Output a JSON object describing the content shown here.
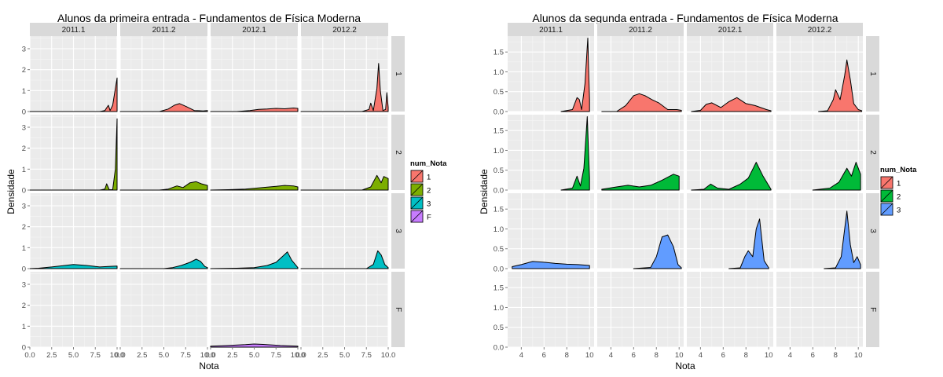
{
  "chart_data": [
    {
      "type": "area",
      "title": "Alunos da primeira entrada -  Fundamentos de Física Moderna",
      "xlabel": "Nota",
      "ylabel": "Densidade",
      "xlim": [
        0,
        10
      ],
      "ylim": [
        0,
        3.6
      ],
      "x_ticks": [
        0,
        2.5,
        5,
        7.5,
        10
      ],
      "x_tick_labels": [
        "0.0",
        "2.5",
        "5.0",
        "7.5",
        "10.0"
      ],
      "y_ticks": [
        0,
        1,
        2,
        3
      ],
      "y_tick_labels": [
        "0",
        "1",
        "2",
        "3"
      ],
      "columns": [
        "2011.1",
        "2011.2",
        "2012.1",
        "2012.2"
      ],
      "rows": [
        "1",
        "2",
        "3",
        "F"
      ],
      "grid": true,
      "legend": {
        "title": "num_Nota",
        "position": "right",
        "entries": [
          {
            "label": "1",
            "color": "#F8766D"
          },
          {
            "label": "2",
            "color": "#7CAE00"
          },
          {
            "label": "3",
            "color": "#00BFC4"
          },
          {
            "label": "F",
            "color": "#C77CFF"
          }
        ]
      },
      "panels": [
        {
          "row": "1",
          "col": "2011.1",
          "x": [
            0,
            8.0,
            8.6,
            9.0,
            9.2,
            9.5,
            9.8,
            10
          ],
          "y": [
            0,
            0,
            0.05,
            0.3,
            0.05,
            0.3,
            1.1,
            1.6
          ]
        },
        {
          "row": "1",
          "col": "2011.2",
          "x": [
            0,
            4.5,
            5.5,
            6.2,
            6.8,
            7.5,
            8.5,
            9.5,
            10
          ],
          "y": [
            0,
            0,
            0.12,
            0.3,
            0.38,
            0.25,
            0.05,
            0.03,
            0.05
          ]
        },
        {
          "row": "1",
          "col": "2012.1",
          "x": [
            0,
            3.0,
            4.5,
            5.5,
            6.5,
            7.5,
            8.5,
            9.5,
            10
          ],
          "y": [
            0,
            0,
            0.05,
            0.1,
            0.12,
            0.15,
            0.13,
            0.17,
            0.15
          ]
        },
        {
          "row": "1",
          "col": "2012.2",
          "x": [
            0,
            7.0,
            7.8,
            8.0,
            8.3,
            8.7,
            8.9,
            9.1,
            9.4,
            9.7,
            9.85,
            10
          ],
          "y": [
            0,
            0,
            0.1,
            0.4,
            0.05,
            1.1,
            2.3,
            1.0,
            0.05,
            0.1,
            0.9,
            0.2
          ]
        },
        {
          "row": "2",
          "col": "2011.1",
          "x": [
            0,
            8.0,
            8.6,
            8.8,
            9.1,
            9.5,
            9.8,
            10
          ],
          "y": [
            0,
            0,
            0.05,
            0.3,
            0.02,
            0.02,
            1.0,
            3.4
          ]
        },
        {
          "row": "2",
          "col": "2011.2",
          "x": [
            0,
            4.5,
            5.5,
            6.5,
            7.2,
            8.0,
            8.7,
            9.3,
            10
          ],
          "y": [
            0,
            0,
            0.05,
            0.2,
            0.12,
            0.35,
            0.4,
            0.3,
            0.22
          ]
        },
        {
          "row": "2",
          "col": "2012.1",
          "x": [
            0,
            2.0,
            4.0,
            6.0,
            7.5,
            8.5,
            9.5,
            10
          ],
          "y": [
            0,
            0.02,
            0.05,
            0.12,
            0.18,
            0.22,
            0.2,
            0.15
          ]
        },
        {
          "row": "2",
          "col": "2012.2",
          "x": [
            0,
            7.0,
            8.0,
            8.7,
            9.2,
            9.5,
            10
          ],
          "y": [
            0,
            0,
            0.15,
            0.7,
            0.35,
            0.65,
            0.55
          ]
        },
        {
          "row": "3",
          "col": "2011.1",
          "x": [
            0,
            1.0,
            2.5,
            4.0,
            5.0,
            6.5,
            8.0,
            9.0,
            10
          ],
          "y": [
            0,
            0.02,
            0.08,
            0.15,
            0.2,
            0.15,
            0.08,
            0.1,
            0.12
          ]
        },
        {
          "row": "3",
          "col": "2011.2",
          "x": [
            0,
            5.0,
            6.0,
            7.0,
            8.0,
            8.7,
            9.2,
            9.7,
            10
          ],
          "y": [
            0,
            0,
            0.05,
            0.15,
            0.3,
            0.45,
            0.35,
            0.1,
            0.05
          ]
        },
        {
          "row": "3",
          "col": "2012.1",
          "x": [
            0,
            3.0,
            5.0,
            6.5,
            7.5,
            8.3,
            8.8,
            9.3,
            10
          ],
          "y": [
            0,
            0.02,
            0.05,
            0.15,
            0.3,
            0.6,
            0.8,
            0.4,
            0.05
          ]
        },
        {
          "row": "3",
          "col": "2012.2",
          "x": [
            0,
            7.5,
            8.3,
            8.8,
            9.2,
            9.6,
            10
          ],
          "y": [
            0,
            0,
            0.2,
            0.85,
            0.65,
            0.2,
            0.05
          ]
        },
        {
          "row": "F",
          "col": "2012.1",
          "x": [
            0,
            2.0,
            4.0,
            5.0,
            6.0,
            8.0,
            10
          ],
          "y": [
            0.05,
            0.08,
            0.12,
            0.15,
            0.13,
            0.08,
            0.05
          ]
        }
      ]
    },
    {
      "type": "area",
      "title": "Alunos da segunda entrada -  Fundamentos de Física Moderna",
      "xlabel": "Nota",
      "ylabel": "Densidade",
      "xlim": [
        2.8,
        10.4
      ],
      "ylim": [
        0,
        1.9
      ],
      "x_ticks": [
        4,
        6,
        8,
        10
      ],
      "x_tick_labels": [
        "4",
        "6",
        "8",
        "10"
      ],
      "y_ticks": [
        0,
        0.5,
        1.0,
        1.5
      ],
      "y_tick_labels": [
        "0.0",
        "0.5",
        "1.0",
        "1.5"
      ],
      "columns": [
        "2011.1",
        "2011.2",
        "2012.1",
        "2012.2"
      ],
      "rows": [
        "1",
        "2",
        "3",
        "F"
      ],
      "grid": true,
      "legend": {
        "title": "num_Nota",
        "position": "right",
        "entries": [
          {
            "label": "1",
            "color": "#F8766D"
          },
          {
            "label": "2",
            "color": "#00BA38"
          },
          {
            "label": "3",
            "color": "#619CFF"
          }
        ]
      },
      "panels": [
        {
          "row": "1",
          "col": "2011.1",
          "x": [
            7.5,
            8.5,
            8.9,
            9.1,
            9.3,
            9.6,
            9.85,
            10.0
          ],
          "y": [
            0,
            0.05,
            0.35,
            0.3,
            0.05,
            0.7,
            1.85,
            0.3
          ]
        },
        {
          "row": "1",
          "col": "2011.2",
          "x": [
            3.2,
            4.5,
            5.3,
            6.0,
            6.5,
            7.0,
            7.6,
            8.2,
            9.0,
            9.8,
            10.2
          ],
          "y": [
            0,
            0,
            0.15,
            0.4,
            0.45,
            0.4,
            0.3,
            0.22,
            0.05,
            0.05,
            0.03
          ]
        },
        {
          "row": "1",
          "col": "2012.1",
          "x": [
            3.2,
            4.0,
            4.5,
            5.0,
            5.8,
            6.5,
            7.2,
            8.0,
            8.8,
            9.8,
            10.2
          ],
          "y": [
            0,
            0.03,
            0.18,
            0.22,
            0.1,
            0.25,
            0.35,
            0.2,
            0.15,
            0.05,
            0.02
          ]
        },
        {
          "row": "1",
          "col": "2012.2",
          "x": [
            6.5,
            7.3,
            7.8,
            8.0,
            8.4,
            8.8,
            9.0,
            9.3,
            9.6,
            10.0,
            10.3
          ],
          "y": [
            0,
            0.02,
            0.3,
            0.55,
            0.3,
            0.9,
            1.3,
            0.8,
            0.2,
            0.05,
            0.02
          ]
        },
        {
          "row": "2",
          "col": "2011.1",
          "x": [
            7.5,
            8.5,
            8.9,
            9.2,
            9.5,
            9.8,
            10.0
          ],
          "y": [
            0,
            0.05,
            0.35,
            0.1,
            0.55,
            1.85,
            0.3
          ]
        },
        {
          "row": "2",
          "col": "2011.2",
          "x": [
            3.2,
            4.5,
            5.5,
            6.5,
            7.5,
            8.5,
            9.5,
            10.0
          ],
          "y": [
            0.02,
            0.08,
            0.12,
            0.08,
            0.12,
            0.25,
            0.4,
            0.35
          ]
        },
        {
          "row": "2",
          "col": "2012.1",
          "x": [
            3.2,
            4.3,
            4.9,
            5.5,
            6.5,
            7.5,
            8.2,
            8.9,
            9.5,
            10.2
          ],
          "y": [
            0,
            0.02,
            0.15,
            0.05,
            0.02,
            0.15,
            0.3,
            0.7,
            0.35,
            0.02
          ]
        },
        {
          "row": "2",
          "col": "2012.2",
          "x": [
            6.0,
            7.5,
            8.3,
            9.0,
            9.4,
            9.8,
            10.2
          ],
          "y": [
            0,
            0.05,
            0.2,
            0.55,
            0.35,
            0.7,
            0.4
          ]
        },
        {
          "row": "3",
          "col": "2011.1",
          "x": [
            3.2,
            4.0,
            5.0,
            6.0,
            7.0,
            8.0,
            9.0,
            10.0
          ],
          "y": [
            0.05,
            0.1,
            0.18,
            0.16,
            0.13,
            0.11,
            0.1,
            0.08
          ]
        },
        {
          "row": "3",
          "col": "2011.2",
          "x": [
            6.0,
            7.5,
            8.0,
            8.5,
            9.0,
            9.5,
            9.9,
            10.2
          ],
          "y": [
            0,
            0.03,
            0.3,
            0.8,
            0.85,
            0.55,
            0.1,
            0.02
          ]
        },
        {
          "row": "3",
          "col": "2012.1",
          "x": [
            6.5,
            7.5,
            7.9,
            8.2,
            8.6,
            8.9,
            9.2,
            9.6,
            10.0
          ],
          "y": [
            0,
            0.02,
            0.3,
            0.45,
            0.3,
            1.0,
            1.25,
            0.2,
            0.02
          ]
        },
        {
          "row": "3",
          "col": "2012.2",
          "x": [
            7.0,
            8.0,
            8.5,
            9.0,
            9.3,
            9.6,
            9.9,
            10.2
          ],
          "y": [
            0,
            0.02,
            0.3,
            1.45,
            0.6,
            0.15,
            0.3,
            0.1
          ]
        }
      ]
    }
  ]
}
